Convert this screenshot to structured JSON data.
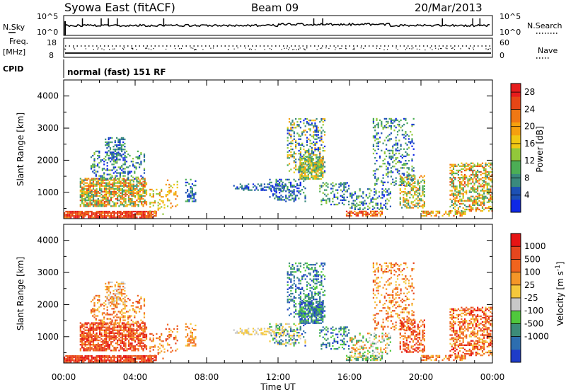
{
  "header": {
    "station": "Syowa East (fitACF)",
    "beam": "Beam 09",
    "date": "20/Mar/2013"
  },
  "top_strips": {
    "nsky_label": "N.Sky",
    "nsearch_label": "N.Search",
    "nsky_ticks": [
      "10^5",
      "10^0"
    ],
    "nsearch_ticks": [
      "10^5",
      "10^0"
    ],
    "freq_label_1": "Freq.",
    "freq_label_2": "[MHz]",
    "freq_ticks": [
      "18",
      "8"
    ],
    "nave_label": "Nave",
    "nave_ticks": [
      "60",
      "0"
    ],
    "cpid_label": "CPID",
    "cpid_value": "normal (fast) 151 RF"
  },
  "chart_data": [
    {
      "type": "heatmap",
      "name": "power",
      "ylabel": "Slant Range [km]",
      "xlabel": "",
      "ylim": [
        180,
        4500
      ],
      "xlim": [
        0,
        24
      ],
      "yticks": [
        "1000",
        "2000",
        "3000",
        "4000"
      ],
      "colorbar_label": "Power [dB]",
      "colorbar_ticks": [
        "4",
        "8",
        "12",
        "16",
        "20",
        "24",
        "28"
      ],
      "colors": [
        "#0f28e6",
        "#1c50b4",
        "#3a8a7d",
        "#4cae55",
        "#92c83a",
        "#f0c814",
        "#f5a00f",
        "#f07814",
        "#e64616",
        "#e61c1c"
      ]
    },
    {
      "type": "heatmap",
      "name": "velocity",
      "ylabel": "Slant Range [km]",
      "xlabel": "Time UT",
      "ylim": [
        180,
        4500
      ],
      "xlim": [
        0,
        24
      ],
      "yticks": [
        "1000",
        "2000",
        "3000",
        "4000"
      ],
      "xticks": [
        "00:00",
        "04:00",
        "08:00",
        "12:00",
        "16:00",
        "20:00",
        "00:00"
      ],
      "colorbar_label": "Velocity [m s",
      "colorbar_label_sup": "-1",
      "colorbar_label_end": "]",
      "colorbar_ticks": [
        "1000",
        "500",
        "100",
        "25",
        "-25",
        "-100",
        "-500",
        "-1000"
      ],
      "colors": [
        "#1e3cc8",
        "#2d6eaf",
        "#3c8c78",
        "#50c83c",
        "#c8c8c8",
        "#f5c83c",
        "#f59628",
        "#f0641e",
        "#e6461e",
        "#e61414"
      ]
    }
  ]
}
